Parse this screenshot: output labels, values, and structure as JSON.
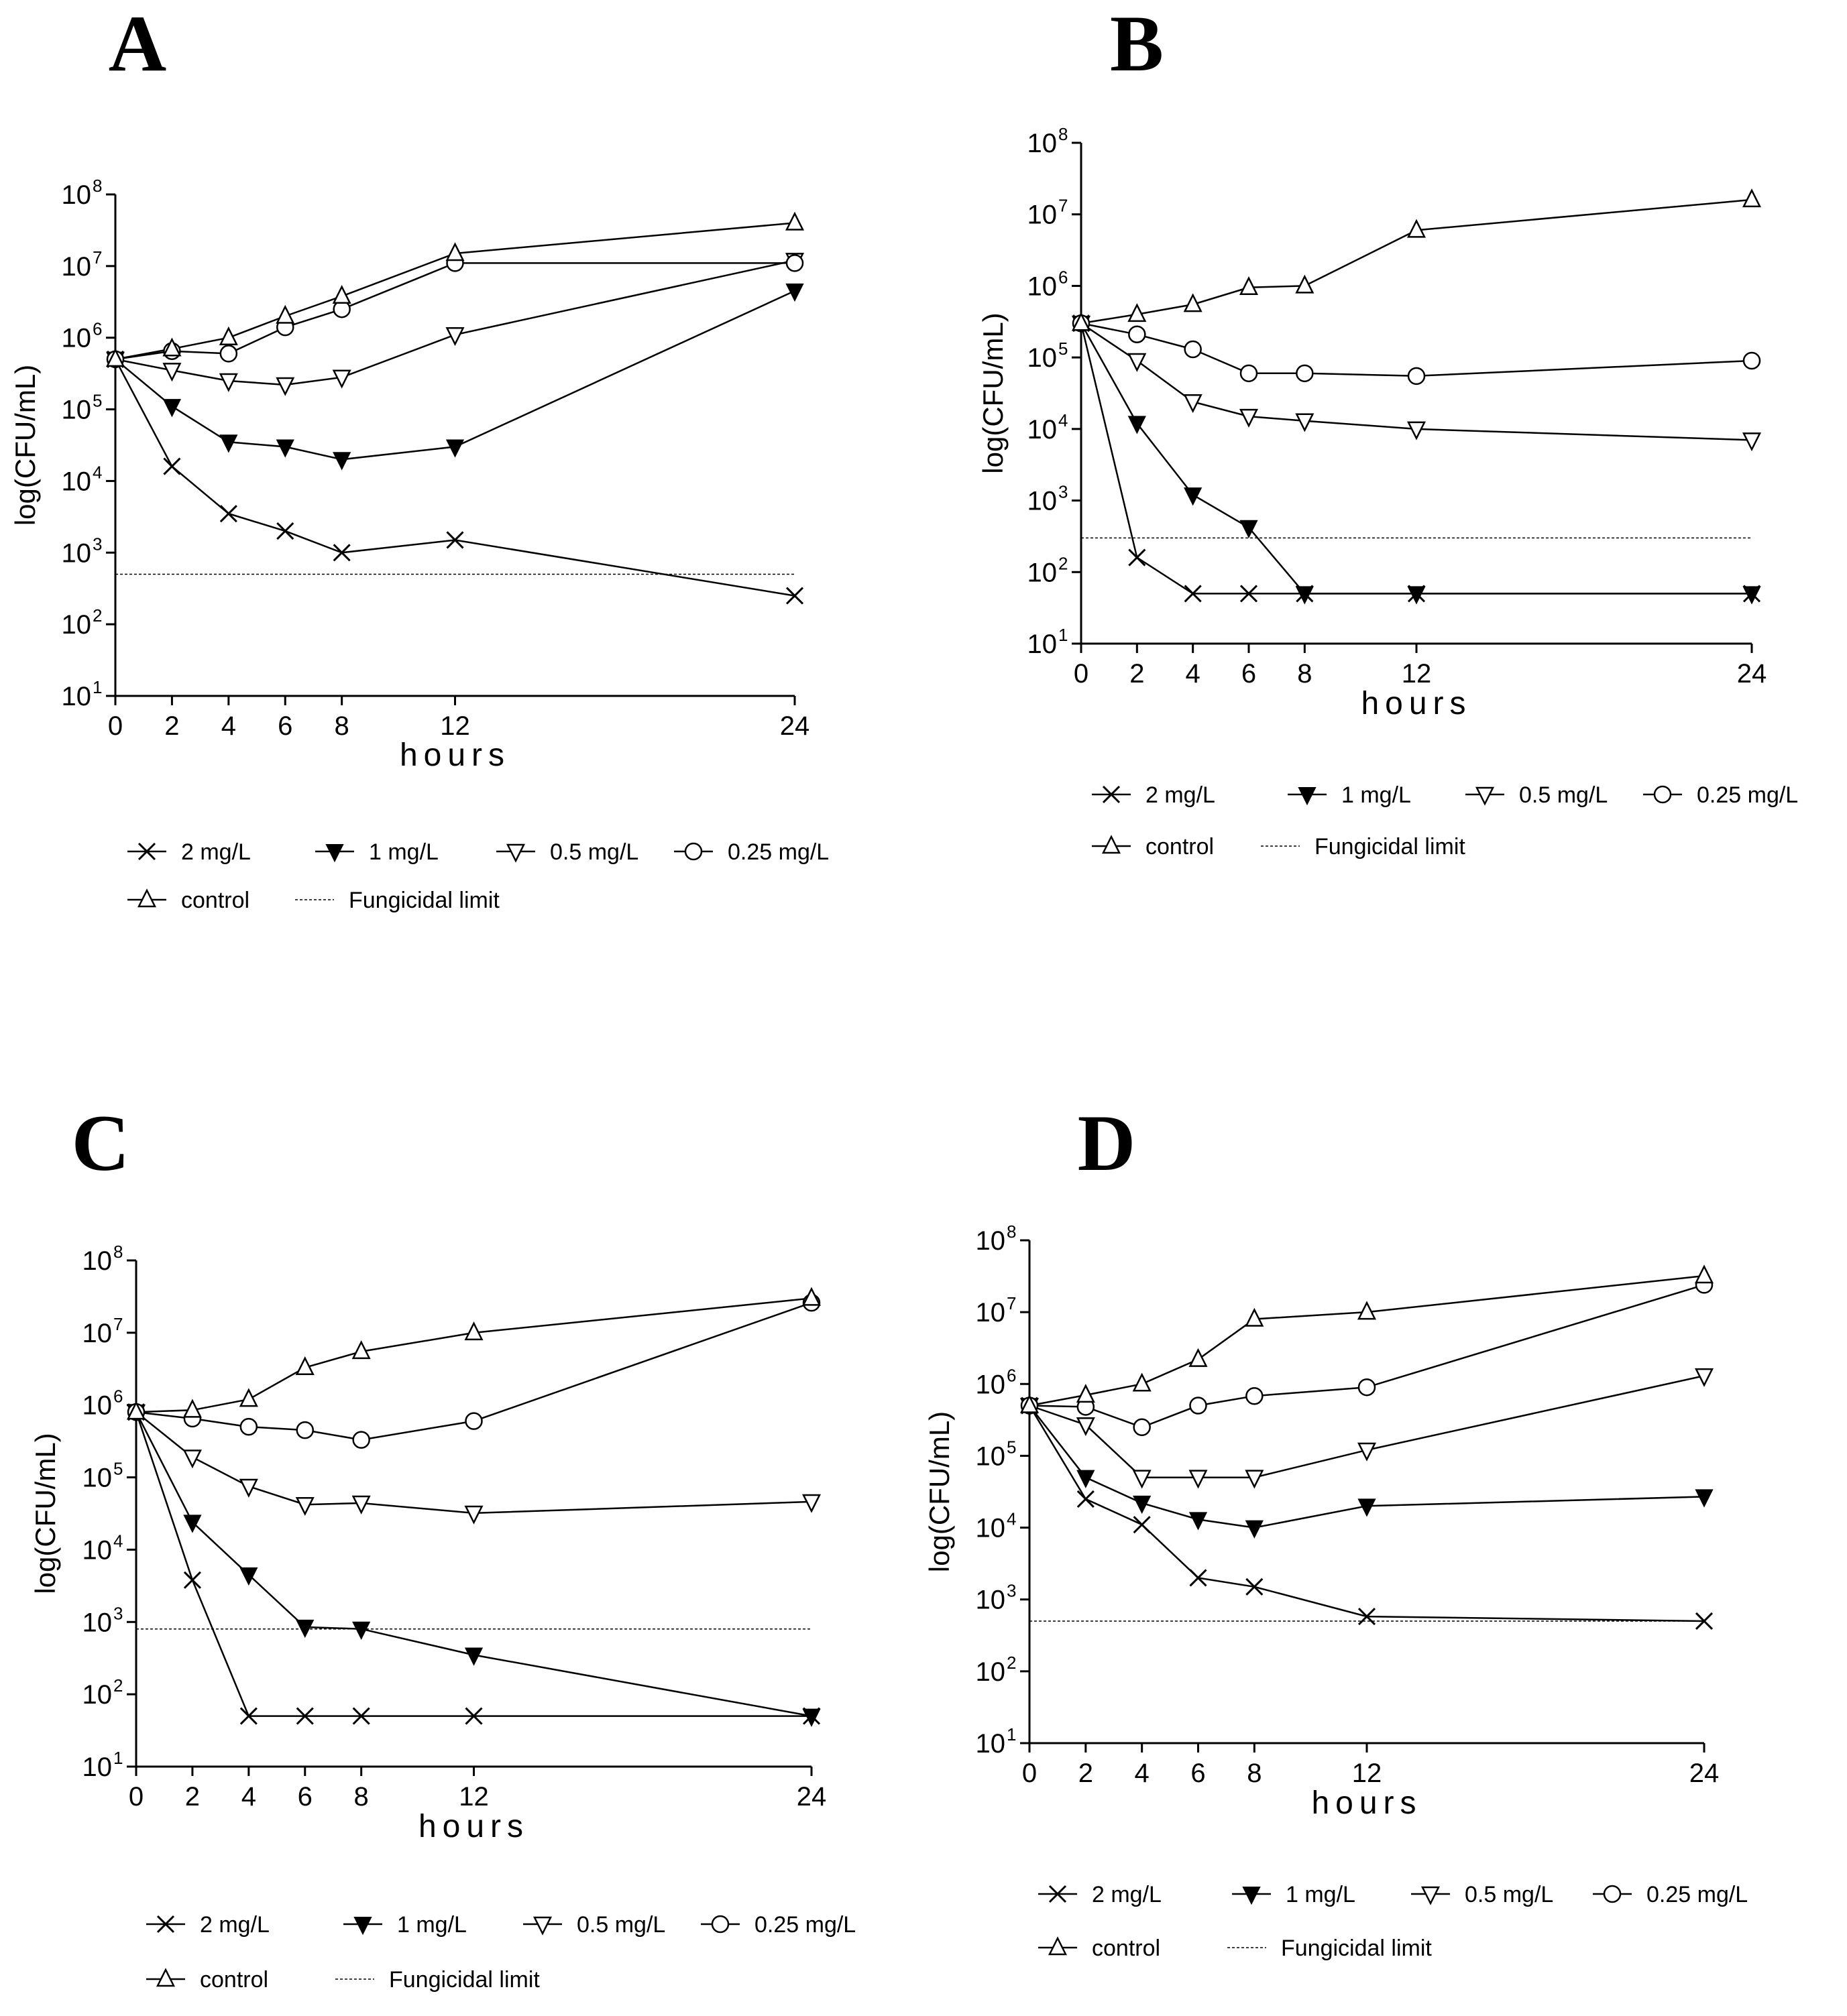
{
  "chart_data": [
    {
      "type": "line",
      "panel": "A",
      "xlabel": "hours",
      "ylabel": "log(CFU/mL)",
      "x_ticks": [
        0,
        2,
        4,
        6,
        8,
        12,
        24
      ],
      "y_ticks": [
        "10^1",
        "10^2",
        "10^3",
        "10^4",
        "10^5",
        "10^6",
        "10^7",
        "10^8"
      ],
      "xlim": [
        0,
        24
      ],
      "ylim_log10": [
        1,
        8
      ],
      "y_scale": "log",
      "fungicidal_limit": 500,
      "series": [
        {
          "name": "2 mg/L",
          "marker": "x",
          "x": [
            0,
            2,
            4,
            6,
            8,
            12,
            24
          ],
          "values": [
            500000,
            16000,
            3500,
            2000,
            1000,
            1500,
            250
          ]
        },
        {
          "name": "1 mg/L",
          "marker": "triangle-down-filled",
          "x": [
            0,
            2,
            4,
            6,
            8,
            12,
            24
          ],
          "values": [
            500000,
            110000,
            35000,
            30000,
            20000,
            30000,
            4500000
          ]
        },
        {
          "name": "0.5 mg/L",
          "marker": "triangle-down-open",
          "x": [
            0,
            2,
            4,
            6,
            8,
            12,
            24
          ],
          "values": [
            500000,
            350000,
            250000,
            220000,
            280000,
            1100000,
            12000000
          ]
        },
        {
          "name": "0.25 mg/L",
          "marker": "circle-open",
          "x": [
            0,
            2,
            4,
            6,
            8,
            12,
            24
          ],
          "values": [
            500000,
            650000,
            600000,
            1400000,
            2500000,
            11000000,
            11000000
          ]
        },
        {
          "name": "control",
          "marker": "triangle-up-open",
          "x": [
            0,
            2,
            4,
            6,
            8,
            12,
            24
          ],
          "values": [
            500000,
            700000,
            1000000,
            2000000,
            3800000,
            15000000,
            40000000
          ]
        }
      ],
      "legend": {
        "row1": [
          "2 mg/L",
          "1 mg/L",
          "0.5 mg/L",
          "0.25 mg/L"
        ],
        "row2": [
          "control",
          "Fungicidal limit"
        ]
      }
    },
    {
      "type": "line",
      "panel": "B",
      "xlabel": "hours",
      "ylabel": "log(CFU/mL)",
      "x_ticks": [
        0,
        2,
        4,
        6,
        8,
        12,
        24
      ],
      "y_ticks": [
        "10^1",
        "10^2",
        "10^3",
        "10^4",
        "10^5",
        "10^6",
        "10^7",
        "10^8"
      ],
      "xlim": [
        0,
        24
      ],
      "ylim_log10": [
        1,
        8
      ],
      "y_scale": "log",
      "fungicidal_limit": 300,
      "series": [
        {
          "name": "2 mg/L",
          "marker": "x",
          "x": [
            0,
            2,
            4,
            6,
            8,
            12,
            24
          ],
          "values": [
            300000,
            160,
            50,
            50,
            50,
            50,
            50
          ]
        },
        {
          "name": "1 mg/L",
          "marker": "triangle-down-filled",
          "x": [
            0,
            2,
            4,
            6,
            8,
            12,
            24
          ],
          "values": [
            300000,
            12000,
            1200,
            420,
            50,
            50,
            50
          ]
        },
        {
          "name": "0.5 mg/L",
          "marker": "triangle-down-open",
          "x": [
            0,
            2,
            4,
            6,
            8,
            12,
            24
          ],
          "values": [
            300000,
            90000,
            24000,
            15000,
            13000,
            10000,
            7000
          ]
        },
        {
          "name": "0.25 mg/L",
          "marker": "circle-open",
          "x": [
            0,
            2,
            4,
            6,
            8,
            12,
            24
          ],
          "values": [
            300000,
            210000,
            130000,
            60000,
            60000,
            55000,
            90000
          ]
        },
        {
          "name": "control",
          "marker": "triangle-up-open",
          "x": [
            0,
            2,
            4,
            6,
            8,
            12,
            24
          ],
          "values": [
            300000,
            400000,
            550000,
            950000,
            1000000,
            6000000,
            16000000
          ]
        }
      ],
      "legend": {
        "row1": [
          "2 mg/L",
          "1 mg/L",
          "0.5 mg/L",
          "0.25 mg/L"
        ],
        "row2": [
          "control",
          "Fungicidal limit"
        ]
      }
    },
    {
      "type": "line",
      "panel": "C",
      "xlabel": "hours",
      "ylabel": "log(CFU/mL)",
      "x_ticks": [
        0,
        2,
        4,
        6,
        8,
        12,
        24
      ],
      "y_ticks": [
        "10^1",
        "10^2",
        "10^3",
        "10^4",
        "10^5",
        "10^6",
        "10^7",
        "10^8"
      ],
      "xlim": [
        0,
        24
      ],
      "ylim_log10": [
        1,
        8
      ],
      "y_scale": "log",
      "fungicidal_limit": 800,
      "series": [
        {
          "name": "2 mg/L",
          "marker": "x",
          "x": [
            0,
            2,
            4,
            6,
            8,
            12,
            24
          ],
          "values": [
            800000,
            3800,
            50,
            50,
            50,
            50,
            50
          ]
        },
        {
          "name": "1 mg/L",
          "marker": "triangle-down-filled",
          "x": [
            0,
            2,
            4,
            6,
            8,
            12,
            24
          ],
          "values": [
            800000,
            24000,
            4500,
            850,
            800,
            350,
            50
          ]
        },
        {
          "name": "0.5 mg/L",
          "marker": "triangle-down-open",
          "x": [
            0,
            2,
            4,
            6,
            8,
            12,
            24
          ],
          "values": [
            800000,
            190000,
            75000,
            42000,
            44000,
            32000,
            46000
          ]
        },
        {
          "name": "0.25 mg/L",
          "marker": "circle-open",
          "x": [
            0,
            2,
            4,
            6,
            8,
            12,
            24
          ],
          "values": [
            800000,
            650000,
            500000,
            450000,
            330000,
            600000,
            26000000
          ]
        },
        {
          "name": "control",
          "marker": "triangle-up-open",
          "x": [
            0,
            2,
            4,
            6,
            8,
            12,
            24
          ],
          "values": [
            800000,
            850000,
            1200000,
            3300000,
            5500000,
            10000000,
            30000000
          ]
        }
      ],
      "legend": {
        "row1": [
          "2 mg/L",
          "1 mg/L",
          "0.5 mg/L",
          "0.25 mg/L"
        ],
        "row2": [
          "control",
          "Fungicidal limit"
        ]
      }
    },
    {
      "type": "line",
      "panel": "D",
      "xlabel": "hours",
      "ylabel": "log(CFU/mL)",
      "x_ticks": [
        0,
        2,
        4,
        6,
        8,
        12,
        24
      ],
      "y_ticks": [
        "10^1",
        "10^2",
        "10^3",
        "10^4",
        "10^5",
        "10^6",
        "10^7",
        "10^8"
      ],
      "xlim": [
        0,
        24
      ],
      "ylim_log10": [
        1,
        8
      ],
      "y_scale": "log",
      "fungicidal_limit": 500,
      "series": [
        {
          "name": "2 mg/L",
          "marker": "x",
          "x": [
            0,
            2,
            4,
            6,
            8,
            12,
            24
          ],
          "values": [
            500000,
            25000,
            11000,
            2000,
            1500,
            580,
            500
          ]
        },
        {
          "name": "1 mg/L",
          "marker": "triangle-down-filled",
          "x": [
            0,
            2,
            4,
            6,
            8,
            12,
            24
          ],
          "values": [
            500000,
            50000,
            22000,
            13000,
            10000,
            20000,
            27000
          ]
        },
        {
          "name": "0.5 mg/L",
          "marker": "triangle-down-open",
          "x": [
            0,
            2,
            4,
            6,
            8,
            12,
            24
          ],
          "values": [
            500000,
            270000,
            50000,
            50000,
            50000,
            120000,
            1300000
          ]
        },
        {
          "name": "0.25 mg/L",
          "marker": "circle-open",
          "x": [
            0,
            2,
            4,
            6,
            8,
            12,
            24
          ],
          "values": [
            500000,
            480000,
            250000,
            500000,
            680000,
            900000,
            24000000
          ]
        },
        {
          "name": "control",
          "marker": "triangle-up-open",
          "x": [
            0,
            2,
            4,
            6,
            8,
            12,
            24
          ],
          "values": [
            500000,
            700000,
            1000000,
            2200000,
            8000000,
            10000000,
            32000000
          ]
        }
      ],
      "legend": {
        "row1": [
          "2 mg/L",
          "1 mg/L",
          "0.5 mg/L",
          "0.25 mg/L"
        ],
        "row2": [
          "control",
          "Fungicidal limit"
        ]
      }
    }
  ]
}
